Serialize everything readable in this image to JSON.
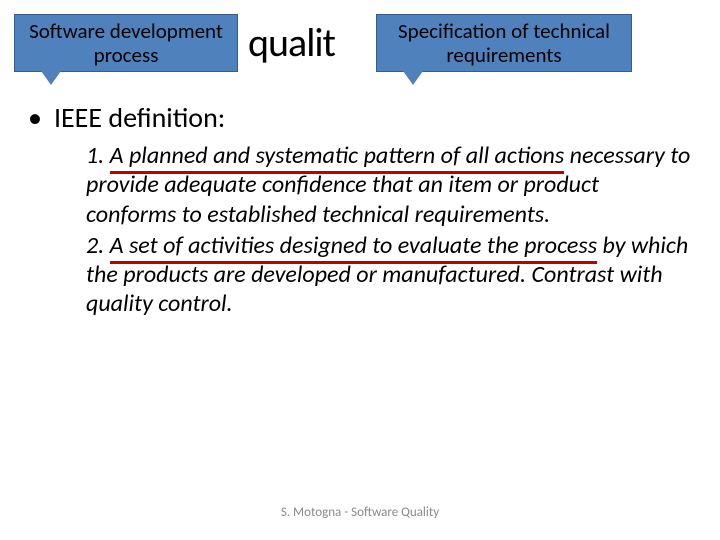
{
  "background_title": "qualit",
  "callouts": {
    "left": {
      "line1": "Software development",
      "line2": "process"
    },
    "right": {
      "line1": "Specification of technical",
      "line2": "requirements"
    }
  },
  "bullet_label": "IEEE definition:",
  "definitions": {
    "d1_prefix": "1. ",
    "d1_ul": "A planned and systematic pattern of all actions",
    "d1_rest": " necessary to provide adequate confidence that an item or product conforms to established technical requirements.",
    "d2_prefix": "2. ",
    "d2_ul": "A set of activities designed to evaluate the process",
    "d2_rest": " by which the products are developed or manufactured. Contrast with quality control."
  },
  "footer": "S. Motogna - Software Quality",
  "colors": {
    "callout_bg": "#4f81bd",
    "underline": "#c00000",
    "text": "#000000",
    "footer": "#8a8a8a"
  }
}
